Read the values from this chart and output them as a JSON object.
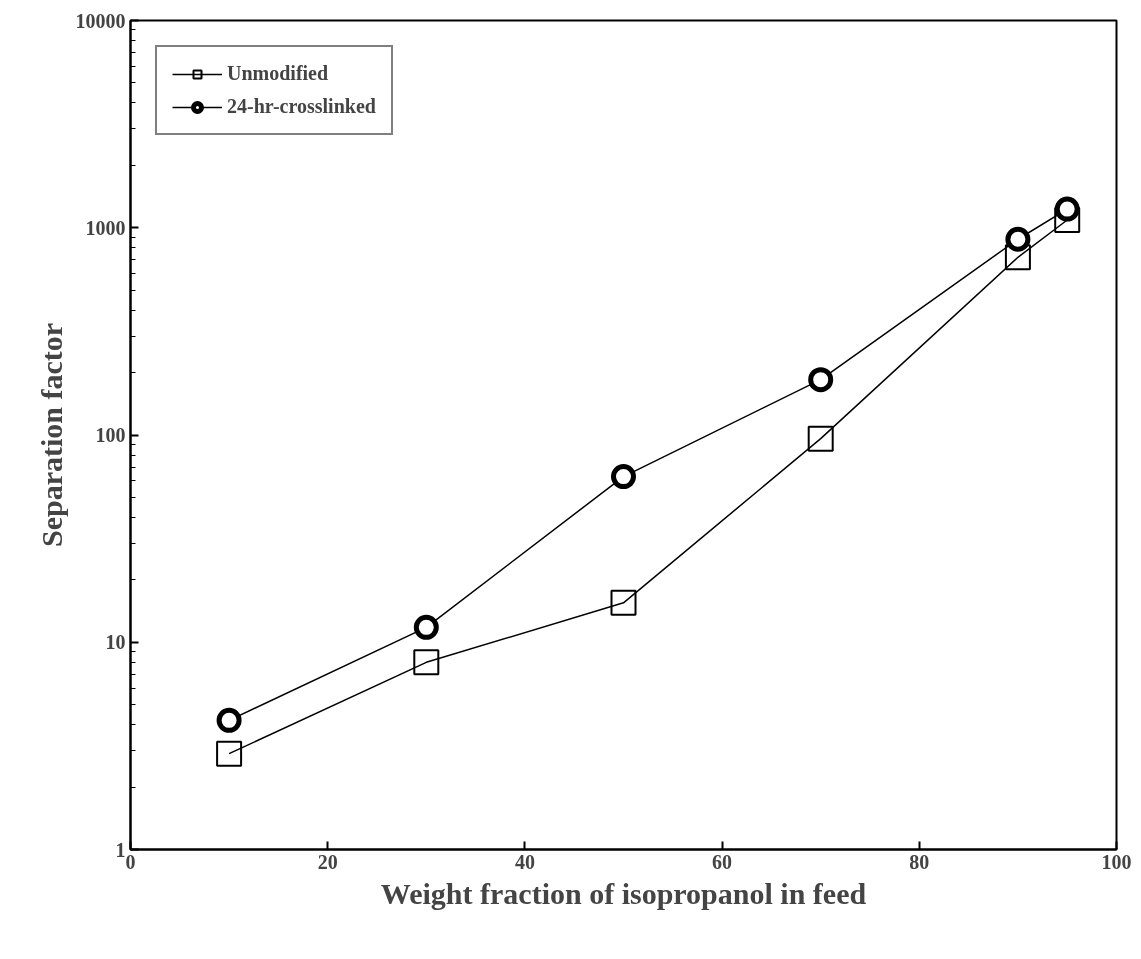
{
  "chart_data": {
    "type": "line",
    "xlabel": "Weight fraction of isopropanol in feed",
    "ylabel": "Separation factor",
    "x": [
      10,
      30,
      50,
      70,
      90,
      95
    ],
    "series": [
      {
        "name": "Unmodified",
        "color": "#000000",
        "values": [
          2.9,
          8,
          15.5,
          96,
          720,
          1090
        ],
        "marker": "square"
      },
      {
        "name": "24-hr-crosslinked",
        "color": "#000000",
        "values": [
          4.2,
          11.8,
          63,
          185,
          880,
          1230
        ],
        "marker": "circle"
      }
    ],
    "log": "y",
    "xlim": [
      0,
      100
    ],
    "ylim": [
      1,
      10000
    ],
    "xticks": [
      0,
      20,
      40,
      60,
      80,
      100
    ],
    "yticks": [
      1,
      10,
      100,
      1000,
      10000
    ],
    "grid": false,
    "legend": "top left",
    "line_style": "solid"
  }
}
